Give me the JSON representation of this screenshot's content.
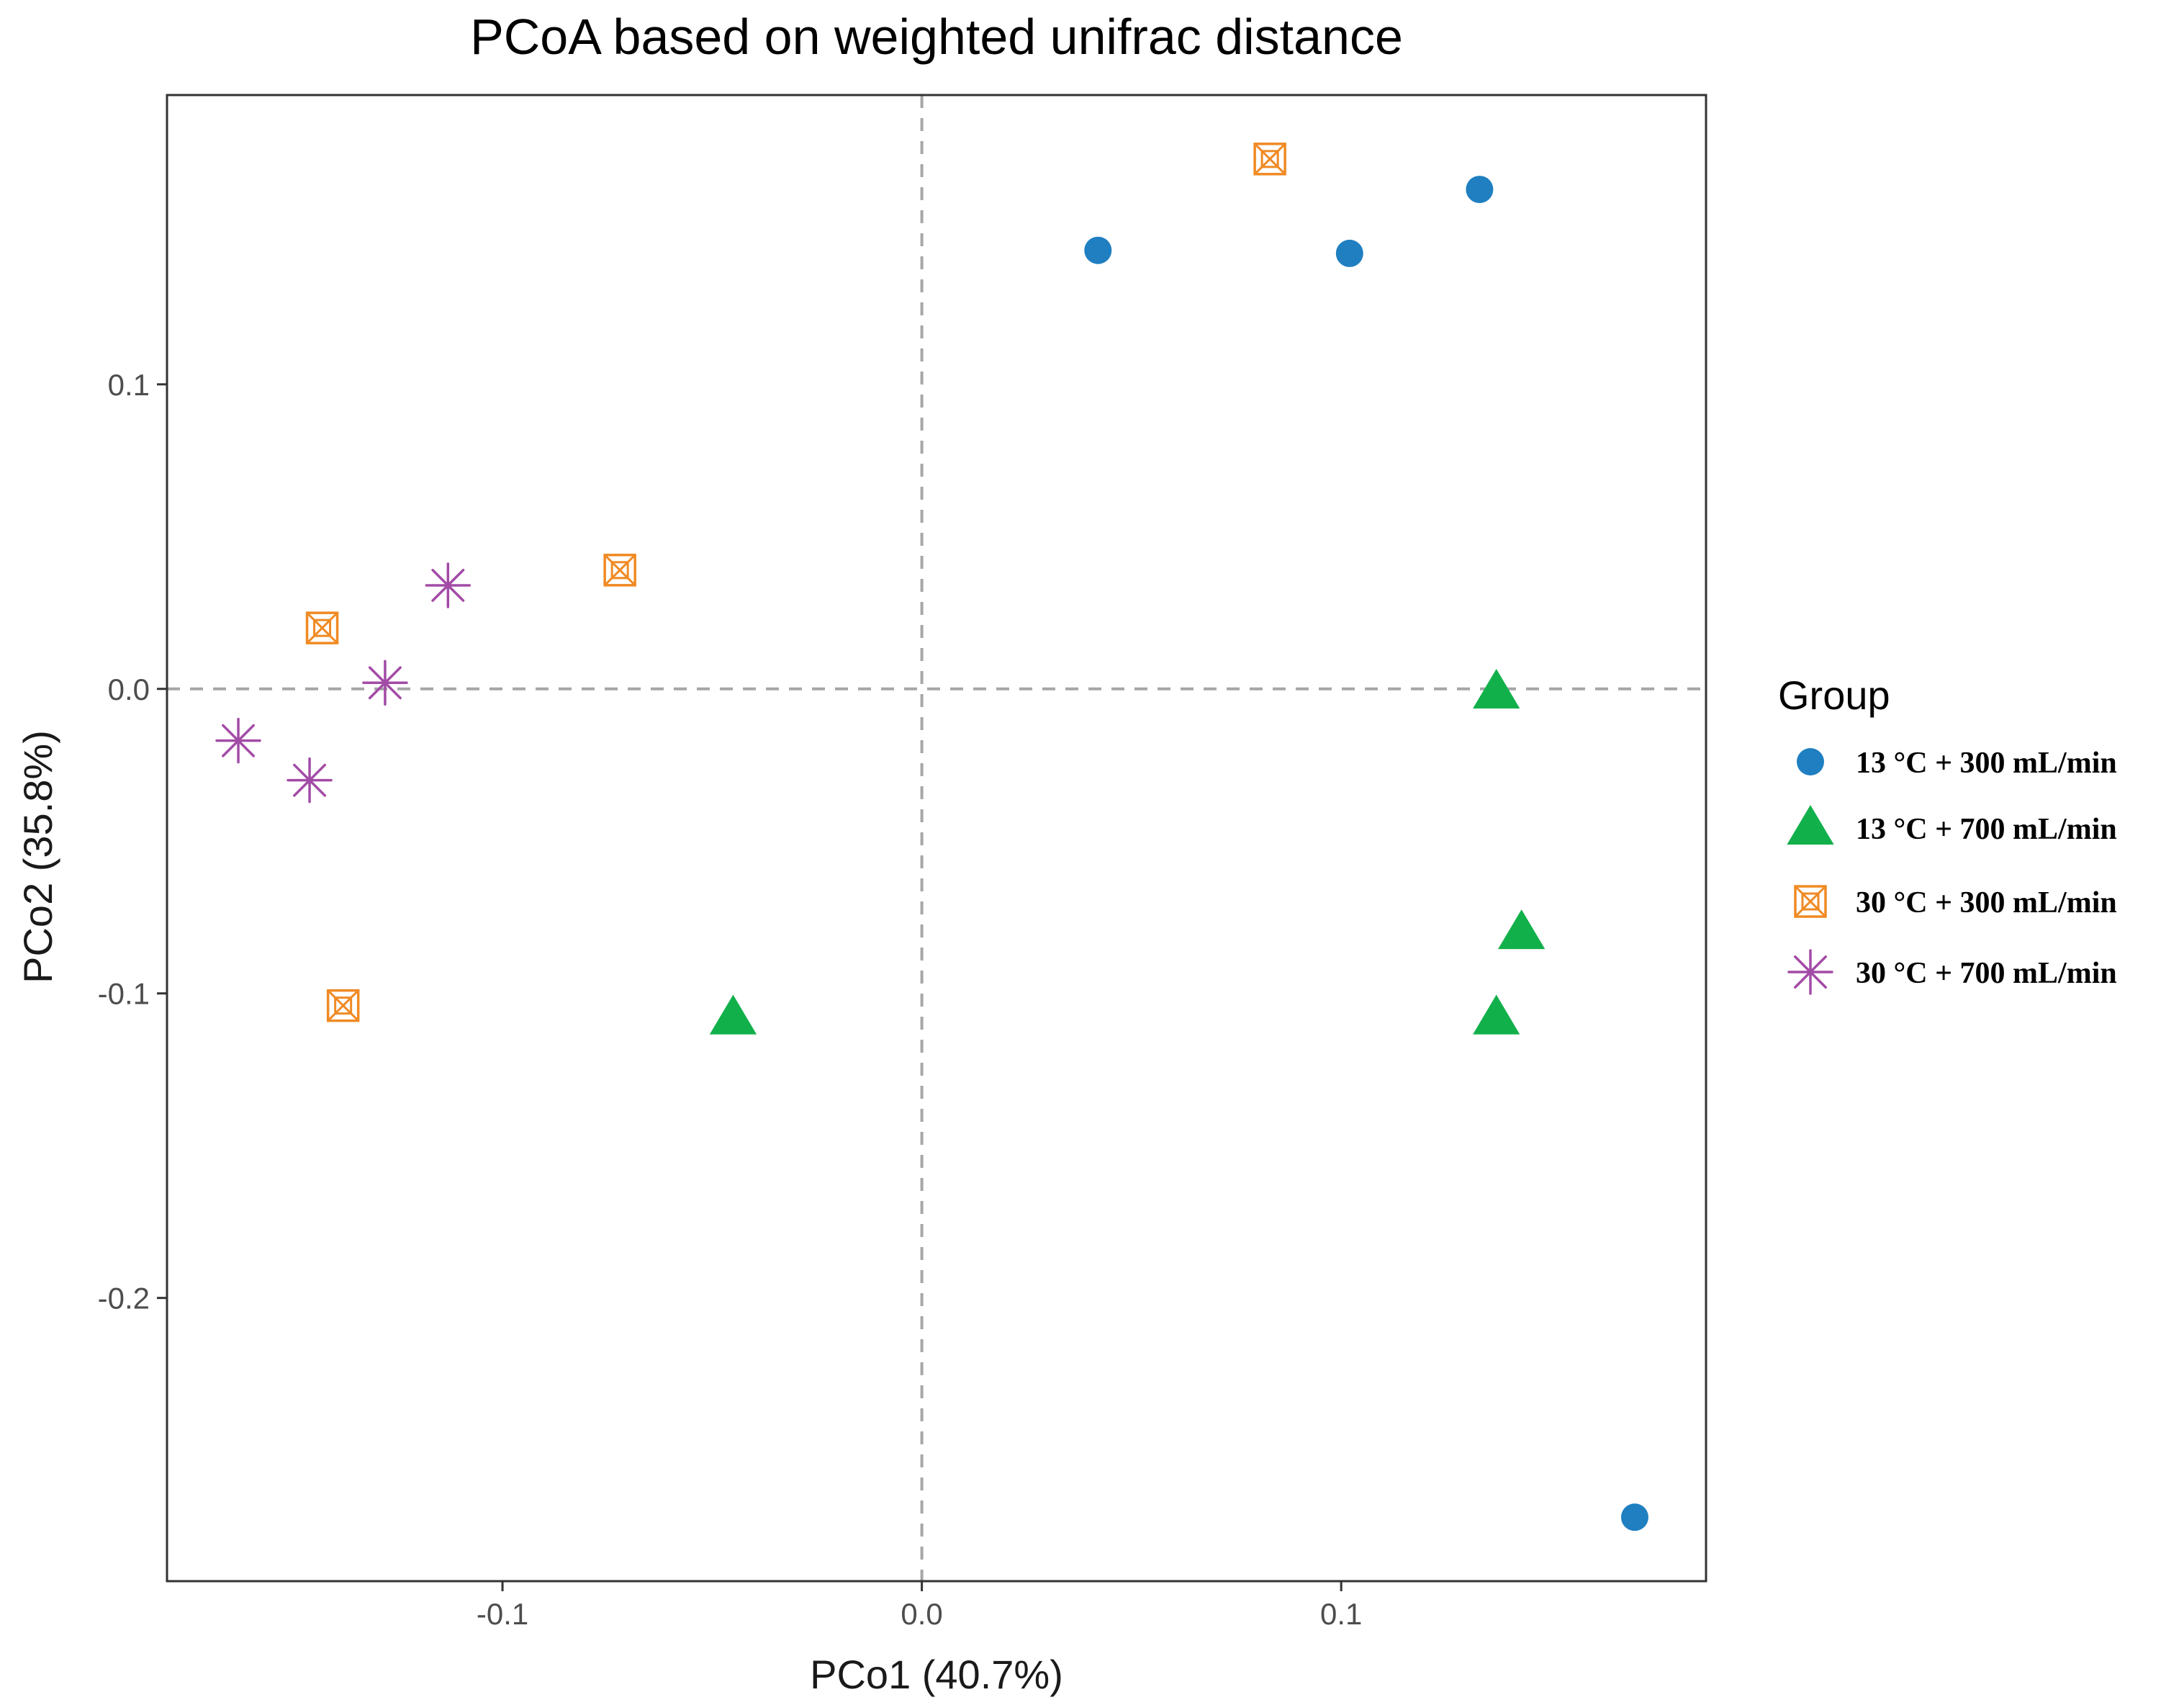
{
  "chart_data": {
    "type": "scatter",
    "title": "PCoA based on weighted unifrac distance",
    "xlabel": "PCo1 (40.7%)",
    "ylabel": "PCo2 (35.8%)",
    "xlim": [
      -0.18,
      0.187
    ],
    "ylim": [
      -0.293,
      0.195
    ],
    "xticks": [
      -0.1,
      0.0,
      0.1
    ],
    "xtick_labels": [
      "-0.1",
      "0.0",
      "0.1"
    ],
    "yticks": [
      -0.2,
      -0.1,
      0.0,
      0.1
    ],
    "ytick_labels": [
      "-0.2",
      "-0.1",
      "0.0",
      "0.1"
    ],
    "grid": false,
    "reference_lines": [
      {
        "axis": "x",
        "value": 0.0
      },
      {
        "axis": "y",
        "value": 0.0
      }
    ],
    "legend": {
      "title": "Group",
      "position": "right"
    },
    "series": [
      {
        "name": "13 °C + 300 mL/min",
        "marker": "circle",
        "color": "#1f7fc0",
        "points": [
          {
            "x": 0.042,
            "y": 0.144
          },
          {
            "x": 0.102,
            "y": 0.143
          },
          {
            "x": 0.133,
            "y": 0.164
          },
          {
            "x": 0.17,
            "y": -0.272
          }
        ]
      },
      {
        "name": "13 °C + 700 mL/min",
        "marker": "triangle",
        "color": "#12b04b",
        "points": [
          {
            "x": -0.045,
            "y": -0.108
          },
          {
            "x": 0.137,
            "y": -0.001
          },
          {
            "x": 0.143,
            "y": -0.08
          },
          {
            "x": 0.137,
            "y": -0.108
          }
        ]
      },
      {
        "name": "30 °C + 300 mL/min",
        "marker": "square-cross",
        "color": "#f08a24",
        "points": [
          {
            "x": 0.083,
            "y": 0.174
          },
          {
            "x": -0.072,
            "y": 0.039
          },
          {
            "x": -0.143,
            "y": 0.02
          },
          {
            "x": -0.138,
            "y": -0.104
          }
        ]
      },
      {
        "name": "30 °C + 700 mL/min",
        "marker": "asterisk",
        "color": "#a24ba6",
        "points": [
          {
            "x": -0.113,
            "y": 0.034
          },
          {
            "x": -0.128,
            "y": 0.002
          },
          {
            "x": -0.163,
            "y": -0.017
          },
          {
            "x": -0.146,
            "y": -0.03
          }
        ]
      }
    ]
  }
}
